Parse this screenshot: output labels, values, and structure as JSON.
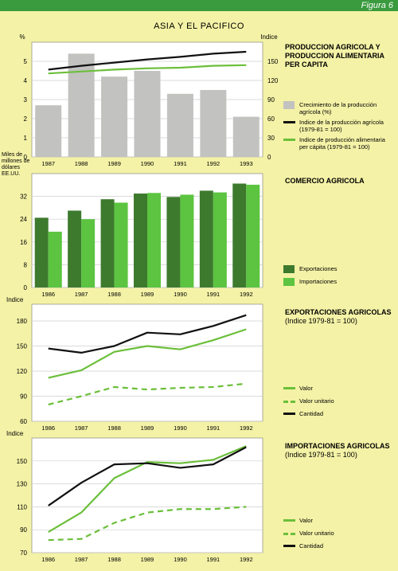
{
  "figure_label": "Figura 6",
  "region_title": "ASIA Y EL PACIFICO",
  "colors": {
    "bar_grey": "#c2c2c0",
    "line_black": "#111111",
    "line_green": "#6bbf3a",
    "dark_green": "#3d7a2e",
    "light_green": "#5cc440",
    "panel_bg": "#ffffff",
    "page_bg": "#f4f2a6"
  },
  "panels": {
    "prod": {
      "title": "PRODUCCION AGRICOLA Y PRODUCCION ALIMENTARIA PER CAPITA",
      "legend": [
        "Crecimiento de la producción agrícola (%)",
        "Indice de la producción agrícola (1979-81 = 100)",
        "Indice de producción alimentaria per cápita (1979-81 = 100)"
      ]
    },
    "trade": {
      "title": "COMERCIO AGRICOLA",
      "legend": [
        "Exportaciones",
        "Importaciones"
      ]
    },
    "exp": {
      "title": "EXPORTACIONES AGRICOLAS",
      "subtitle": "(Indice 1979-81 = 100)",
      "legend": [
        "Valor",
        "Valor unitario",
        "Cantidad"
      ]
    },
    "imp": {
      "title": "IMPORTACIONES AGRICOLAS",
      "subtitle": "(Indice 1979-81 = 100)",
      "legend": [
        "Valor",
        "Valor unitario",
        "Cantidad"
      ]
    }
  },
  "chart_data": [
    {
      "type": "bar",
      "categories": [
        "1987",
        "1988",
        "1989",
        "1990",
        "1991",
        "1992",
        "1993"
      ],
      "series": [
        {
          "name": "Crecimiento de la producción agrícola (%)",
          "values": [
            2.7,
            5.4,
            4.2,
            4.5,
            3.3,
            3.5,
            2.1
          ],
          "axis": "left"
        },
        {
          "name": "Indice de la producción agrícola (1979-81 = 100)",
          "type": "line",
          "values": [
            137,
            143,
            148,
            153,
            157,
            162,
            165
          ],
          "axis": "right"
        },
        {
          "name": "Indice de producción alimentaria per cápita (1979-81 = 100)",
          "type": "line",
          "values": [
            131,
            134,
            137,
            139,
            140,
            143,
            144
          ],
          "axis": "right"
        }
      ],
      "ylabel": "%",
      "y2label": "Indice",
      "ylim": [
        0,
        6
      ],
      "y2lim": [
        0,
        180
      ],
      "yticks": [
        0,
        1,
        2,
        3,
        4,
        5
      ],
      "y2ticks": [
        0,
        30,
        60,
        90,
        120,
        150
      ]
    },
    {
      "type": "bar",
      "categories": [
        "1986",
        "1987",
        "1988",
        "1989",
        "1990",
        "1991",
        "1992"
      ],
      "series": [
        {
          "name": "Exportaciones",
          "values": [
            24.5,
            27,
            31,
            33,
            31.8,
            34,
            36.5
          ]
        },
        {
          "name": "Importaciones",
          "values": [
            19.6,
            24,
            29.8,
            33.2,
            32.6,
            33.4,
            36.1
          ]
        }
      ],
      "ylabel": "Miles de millones de dólares EE.UU.",
      "ylim": [
        0,
        40
      ],
      "yticks": [
        0,
        8,
        16,
        24,
        32
      ]
    },
    {
      "type": "line",
      "categories": [
        "1986",
        "1987",
        "1988",
        "1989",
        "1990",
        "1991",
        "1992"
      ],
      "series": [
        {
          "name": "Valor",
          "values": [
            112,
            121,
            143,
            150,
            146,
            157,
            170
          ]
        },
        {
          "name": "Valor unitario",
          "values": [
            80,
            90,
            101,
            98,
            100,
            101,
            105
          ]
        },
        {
          "name": "Cantidad",
          "values": [
            147,
            142,
            150,
            166,
            164,
            174,
            187
          ]
        }
      ],
      "ylabel": "Indice",
      "ylim": [
        60,
        200
      ],
      "yticks": [
        60,
        90,
        120,
        150,
        180
      ]
    },
    {
      "type": "line",
      "categories": [
        "1986",
        "1987",
        "1988",
        "1989",
        "1990",
        "1991",
        "1992"
      ],
      "series": [
        {
          "name": "Valor",
          "values": [
            88,
            105,
            135,
            149,
            148,
            151,
            163
          ]
        },
        {
          "name": "Valor unitario",
          "values": [
            81,
            82,
            96,
            105,
            108,
            108,
            110
          ]
        },
        {
          "name": "Cantidad",
          "values": [
            111,
            131,
            147,
            148,
            144,
            147,
            162
          ]
        }
      ],
      "ylabel": "Indice",
      "ylim": [
        70,
        170
      ],
      "yticks": [
        70,
        90,
        110,
        130,
        150
      ]
    }
  ]
}
